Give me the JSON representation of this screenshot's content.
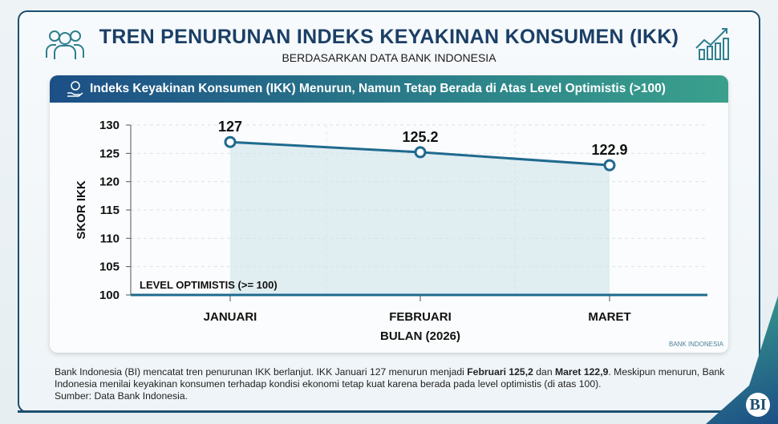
{
  "header": {
    "title": "TREN PENURUNAN INDEKS KEYAKINAN KONSUMEN (IKK)",
    "subtitle": "BERDASARKAN DATA BANK INDONESIA"
  },
  "chart_data": {
    "type": "line",
    "title": "Indeks Keyakinan Konsumen (IKK) Menurun, Namun Tetap Berada di Atas Level Optimistis (>100)",
    "categories": [
      "JANUARI",
      "FEBRUARI",
      "MARET"
    ],
    "values": [
      127,
      125.2,
      122.9
    ],
    "data_labels": [
      "127",
      "125.2",
      "122.9"
    ],
    "xlabel": "BULAN (2026)",
    "ylabel": "SKOR IKK",
    "ylim": [
      100,
      130
    ],
    "yticks": [
      "100",
      "105",
      "110",
      "115",
      "120",
      "125",
      "130"
    ],
    "reference_line": {
      "value": 100,
      "label": "LEVEL OPTIMISTIS (>= 100)"
    },
    "grid": true,
    "source_mark": "BANK INDONESIA",
    "colors": {
      "line": "#1f6a8e",
      "fill": "#cfe3ea",
      "band": "#1c4f86"
    }
  },
  "footer": {
    "p1": "Bank Indonesia (BI) mencatat tren penurunan IKK berlanjut. IKK Januari 127 menurun menjadi ",
    "b1": "Februari 125,2",
    "p2": " dan ",
    "b2": "Maret 122,9",
    "p3": ". Meskipun menurun, Bank Indonesia menilai keyakinan konsumen terhadap kondisi ekonomi tetap kuat karena berada pada level optimistis (di atas 100).",
    "source": "Sumber: Data Bank Indonesia."
  },
  "logo": "BI"
}
